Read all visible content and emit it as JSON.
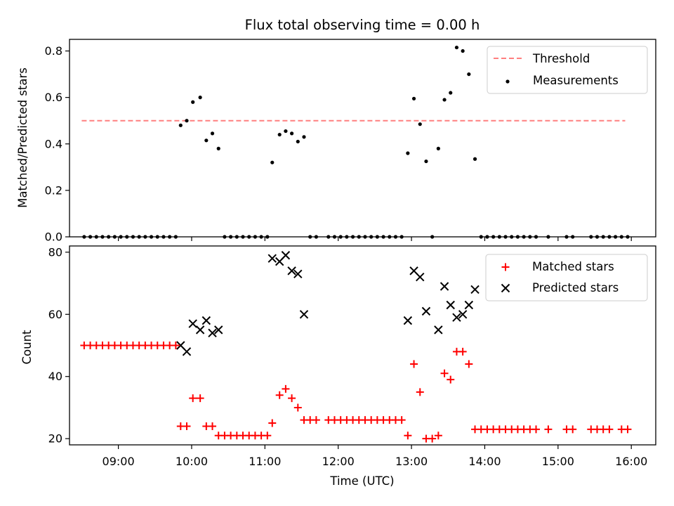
{
  "chart_data": [
    {
      "type": "scatter",
      "title": "Flux total observing time = 0.00 h",
      "xlabel": "",
      "ylabel": "Matched/Predicted stars",
      "xlim": [
        "08:20",
        "16:20"
      ],
      "ylim": [
        0,
        0.85
      ],
      "yticks": [
        0.0,
        0.2,
        0.4,
        0.6,
        0.8
      ],
      "ytick_labels": [
        "0.0",
        "0.2",
        "0.4",
        "0.6",
        "0.8"
      ],
      "legend_position": "top-right",
      "threshold": {
        "name": "Threshold",
        "value": 0.5,
        "x_start": "08:30",
        "x_end": "15:55",
        "color": "#ff7f7f",
        "style": "dashed"
      },
      "series": [
        {
          "name": "Measurements",
          "color": "#000000",
          "marker": "dot",
          "points": [
            [
              "08:32",
              0
            ],
            [
              "08:37",
              0
            ],
            [
              "08:42",
              0
            ],
            [
              "08:47",
              0
            ],
            [
              "08:52",
              0
            ],
            [
              "08:57",
              0
            ],
            [
              "09:02",
              0
            ],
            [
              "09:07",
              0
            ],
            [
              "09:12",
              0
            ],
            [
              "09:17",
              0
            ],
            [
              "09:22",
              0
            ],
            [
              "09:27",
              0
            ],
            [
              "09:32",
              0
            ],
            [
              "09:37",
              0
            ],
            [
              "09:42",
              0
            ],
            [
              "09:47",
              0
            ],
            [
              "09:51",
              0.48
            ],
            [
              "09:56",
              0.5
            ],
            [
              "10:01",
              0.58
            ],
            [
              "10:07",
              0.6
            ],
            [
              "10:12",
              0.415
            ],
            [
              "10:17",
              0.445
            ],
            [
              "10:22",
              0.38
            ],
            [
              "10:27",
              0
            ],
            [
              "10:32",
              0
            ],
            [
              "10:37",
              0
            ],
            [
              "10:42",
              0
            ],
            [
              "10:47",
              0
            ],
            [
              "10:52",
              0
            ],
            [
              "10:57",
              0
            ],
            [
              "11:02",
              0
            ],
            [
              "11:06",
              0.32
            ],
            [
              "11:12",
              0.44
            ],
            [
              "11:17",
              0.455
            ],
            [
              "11:22",
              0.445
            ],
            [
              "11:27",
              0.41
            ],
            [
              "11:32",
              0.43
            ],
            [
              "11:37",
              0
            ],
            [
              "11:42",
              0
            ],
            [
              "11:52",
              0
            ],
            [
              "11:57",
              0
            ],
            [
              "12:02",
              0
            ],
            [
              "12:07",
              0
            ],
            [
              "12:12",
              0
            ],
            [
              "12:17",
              0
            ],
            [
              "12:22",
              0
            ],
            [
              "12:27",
              0
            ],
            [
              "12:32",
              0
            ],
            [
              "12:37",
              0
            ],
            [
              "12:42",
              0
            ],
            [
              "12:47",
              0
            ],
            [
              "12:52",
              0
            ],
            [
              "12:57",
              0.36
            ],
            [
              "13:02",
              0.595
            ],
            [
              "13:07",
              0.485
            ],
            [
              "13:12",
              0.325
            ],
            [
              "13:17",
              0
            ],
            [
              "13:22",
              0.38
            ],
            [
              "13:27",
              0.59
            ],
            [
              "13:32",
              0.62
            ],
            [
              "13:37",
              0.815
            ],
            [
              "13:42",
              0.8
            ],
            [
              "13:47",
              0.7
            ],
            [
              "13:52",
              0.335
            ],
            [
              "13:57",
              0
            ],
            [
              "14:02",
              0
            ],
            [
              "14:07",
              0
            ],
            [
              "14:12",
              0
            ],
            [
              "14:17",
              0
            ],
            [
              "14:22",
              0
            ],
            [
              "14:27",
              0
            ],
            [
              "14:32",
              0
            ],
            [
              "14:37",
              0
            ],
            [
              "14:42",
              0
            ],
            [
              "14:52",
              0
            ],
            [
              "15:07",
              0
            ],
            [
              "15:12",
              0
            ],
            [
              "15:27",
              0
            ],
            [
              "15:32",
              0
            ],
            [
              "15:37",
              0
            ],
            [
              "15:42",
              0
            ],
            [
              "15:47",
              0
            ],
            [
              "15:52",
              0
            ],
            [
              "15:57",
              0
            ]
          ]
        }
      ]
    },
    {
      "type": "scatter",
      "title": "",
      "xlabel": "Time (UTC)",
      "ylabel": "Count",
      "xlim": [
        "08:20",
        "16:20"
      ],
      "ylim": [
        18,
        82
      ],
      "yticks": [
        20,
        40,
        60,
        80
      ],
      "ytick_labels": [
        "20",
        "40",
        "60",
        "80"
      ],
      "xticks": [
        "09:00",
        "10:00",
        "11:00",
        "12:00",
        "13:00",
        "14:00",
        "15:00",
        "16:00"
      ],
      "xtick_labels": [
        "09:00",
        "10:00",
        "11:00",
        "12:00",
        "13:00",
        "14:00",
        "15:00",
        "16:00"
      ],
      "legend_position": "top-right",
      "series": [
        {
          "name": "Matched stars",
          "color": "#ff0000",
          "marker": "plus",
          "points": [
            [
              "08:32",
              50
            ],
            [
              "08:37",
              50
            ],
            [
              "08:42",
              50
            ],
            [
              "08:47",
              50
            ],
            [
              "08:52",
              50
            ],
            [
              "08:57",
              50
            ],
            [
              "09:02",
              50
            ],
            [
              "09:07",
              50
            ],
            [
              "09:12",
              50
            ],
            [
              "09:17",
              50
            ],
            [
              "09:22",
              50
            ],
            [
              "09:27",
              50
            ],
            [
              "09:32",
              50
            ],
            [
              "09:37",
              50
            ],
            [
              "09:42",
              50
            ],
            [
              "09:47",
              50
            ],
            [
              "09:51",
              24
            ],
            [
              "09:56",
              24
            ],
            [
              "10:01",
              33
            ],
            [
              "10:07",
              33
            ],
            [
              "10:12",
              24
            ],
            [
              "10:17",
              24
            ],
            [
              "10:22",
              21
            ],
            [
              "10:27",
              21
            ],
            [
              "10:32",
              21
            ],
            [
              "10:37",
              21
            ],
            [
              "10:42",
              21
            ],
            [
              "10:47",
              21
            ],
            [
              "10:52",
              21
            ],
            [
              "10:57",
              21
            ],
            [
              "11:02",
              21
            ],
            [
              "11:06",
              25
            ],
            [
              "11:12",
              34
            ],
            [
              "11:17",
              36
            ],
            [
              "11:22",
              33
            ],
            [
              "11:27",
              30
            ],
            [
              "11:32",
              26
            ],
            [
              "11:37",
              26
            ],
            [
              "11:42",
              26
            ],
            [
              "11:52",
              26
            ],
            [
              "11:57",
              26
            ],
            [
              "12:02",
              26
            ],
            [
              "12:07",
              26
            ],
            [
              "12:12",
              26
            ],
            [
              "12:17",
              26
            ],
            [
              "12:22",
              26
            ],
            [
              "12:27",
              26
            ],
            [
              "12:32",
              26
            ],
            [
              "12:37",
              26
            ],
            [
              "12:42",
              26
            ],
            [
              "12:47",
              26
            ],
            [
              "12:52",
              26
            ],
            [
              "12:57",
              21
            ],
            [
              "13:02",
              44
            ],
            [
              "13:07",
              35
            ],
            [
              "13:12",
              20
            ],
            [
              "13:17",
              20
            ],
            [
              "13:22",
              21
            ],
            [
              "13:27",
              41
            ],
            [
              "13:32",
              39
            ],
            [
              "13:37",
              48
            ],
            [
              "13:42",
              48
            ],
            [
              "13:47",
              44
            ],
            [
              "13:52",
              23
            ],
            [
              "13:57",
              23
            ],
            [
              "14:02",
              23
            ],
            [
              "14:07",
              23
            ],
            [
              "14:12",
              23
            ],
            [
              "14:17",
              23
            ],
            [
              "14:22",
              23
            ],
            [
              "14:27",
              23
            ],
            [
              "14:32",
              23
            ],
            [
              "14:37",
              23
            ],
            [
              "14:42",
              23
            ],
            [
              "14:52",
              23
            ],
            [
              "15:07",
              23
            ],
            [
              "15:12",
              23
            ],
            [
              "15:27",
              23
            ],
            [
              "15:32",
              23
            ],
            [
              "15:37",
              23
            ],
            [
              "15:42",
              23
            ],
            [
              "15:52",
              23
            ],
            [
              "15:57",
              23
            ]
          ]
        },
        {
          "name": "Predicted stars",
          "color": "#000000",
          "marker": "x",
          "points": [
            [
              "09:51",
              50
            ],
            [
              "09:56",
              48
            ],
            [
              "10:01",
              57
            ],
            [
              "10:07",
              55
            ],
            [
              "10:12",
              58
            ],
            [
              "10:17",
              54
            ],
            [
              "10:22",
              55
            ],
            [
              "11:06",
              78
            ],
            [
              "11:12",
              77
            ],
            [
              "11:17",
              79
            ],
            [
              "11:22",
              74
            ],
            [
              "11:27",
              73
            ],
            [
              "11:32",
              60
            ],
            [
              "12:57",
              58
            ],
            [
              "13:02",
              74
            ],
            [
              "13:07",
              72
            ],
            [
              "13:12",
              61
            ],
            [
              "13:22",
              55
            ],
            [
              "13:27",
              69
            ],
            [
              "13:32",
              63
            ],
            [
              "13:37",
              59
            ],
            [
              "13:42",
              60
            ],
            [
              "13:47",
              63
            ],
            [
              "13:52",
              68
            ]
          ]
        }
      ]
    }
  ]
}
